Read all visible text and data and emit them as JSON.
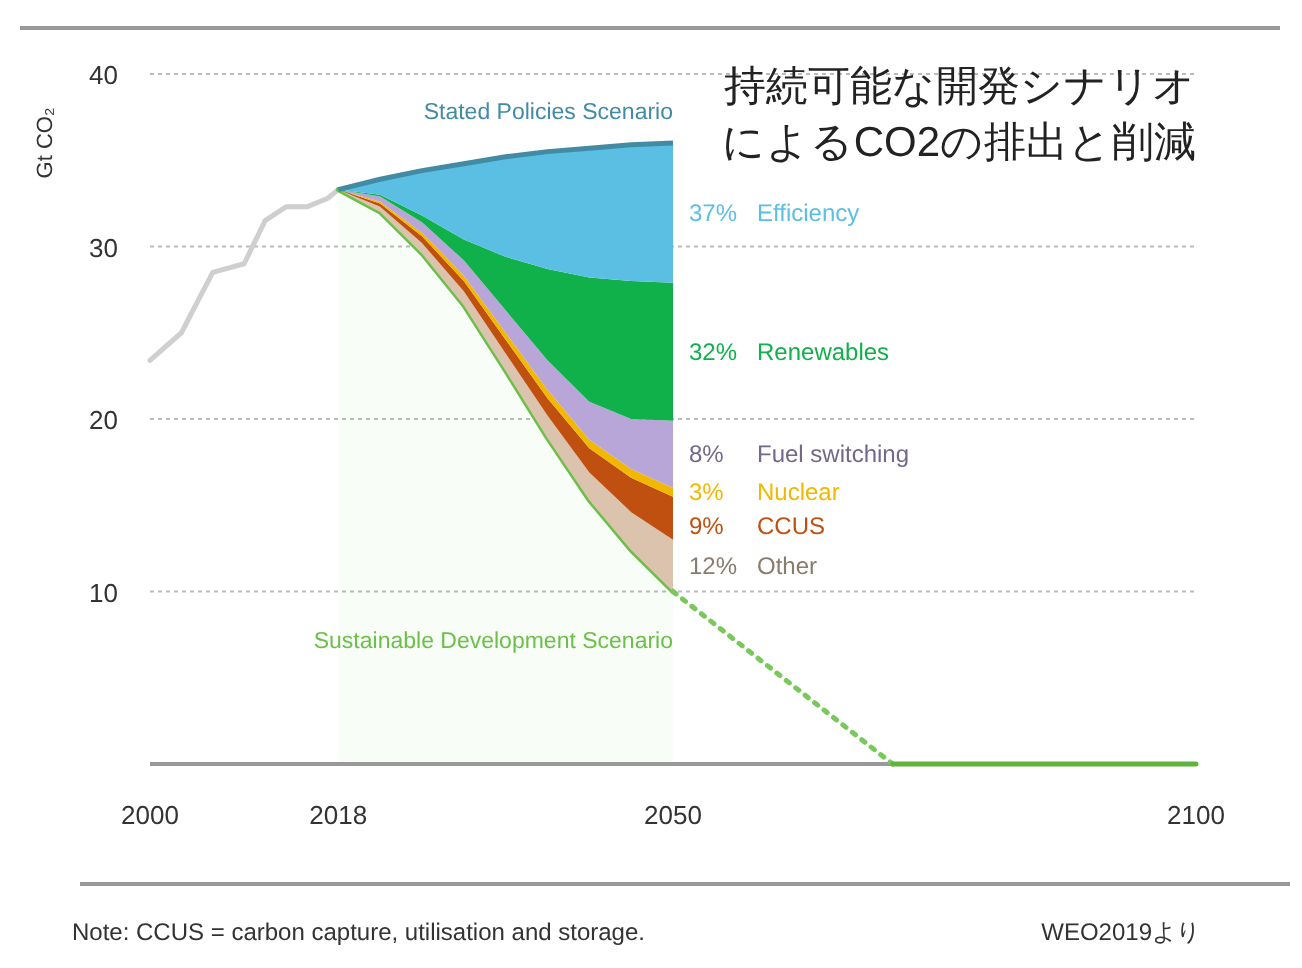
{
  "chart_data": {
    "type": "area",
    "stacked": true,
    "title": "持続可能な開発シナリオによるCO2の排出と削減",
    "ylabel": "Gt CO₂",
    "xlim": [
      2000,
      2100
    ],
    "xticks": [
      2000,
      2018,
      2050,
      2100
    ],
    "ylim": [
      0,
      40
    ],
    "yticks": [
      10,
      20,
      30,
      40
    ],
    "grid": "y",
    "legend": false,
    "marker": "none",
    "x": [
      2018,
      2022,
      2026,
      2030,
      2034,
      2038,
      2042,
      2046,
      2050
    ],
    "series": [
      {
        "type": "line",
        "color": "#cfcfcf",
        "x": [
          2000,
          2003,
          2006,
          2009,
          2011,
          2013,
          2015,
          2017,
          2018
        ],
        "values": [
          23.4,
          25,
          28.5,
          29,
          31.5,
          32.3,
          32.3,
          32.8,
          33.3
        ]
      },
      {
        "name": "Sustainable Development Scenario",
        "color": "#6cc04a",
        "values": [
          33.3,
          32.0,
          29.6,
          26.6,
          22.8,
          18.9,
          15.3,
          12.4,
          10
        ]
      },
      {
        "name": "12% Other",
        "color": "#dcc3ae",
        "values": [
          0,
          0.3,
          0.6,
          0.8,
          1.0,
          1.3,
          1.6,
          2.2,
          3.0
        ]
      },
      {
        "name": "9% CCUS",
        "color": "#c0500f",
        "values": [
          0,
          0.2,
          0.4,
          0.6,
          0.8,
          1.0,
          1.4,
          2.0,
          2.5
        ]
      },
      {
        "name": "3% Nuclear",
        "color": "#f2b800",
        "values": [
          0,
          0.1,
          0.2,
          0.3,
          0.4,
          0.5,
          0.5,
          0.5,
          0.5
        ]
      },
      {
        "name": "8% Fuel switching",
        "color": "#b9a6d9",
        "values": [
          0,
          0.3,
          0.6,
          0.9,
          1.3,
          1.7,
          2.2,
          2.9,
          3.9
        ]
      },
      {
        "name": "32% Renewables",
        "color": "#10b04a",
        "values": [
          0,
          0.1,
          0.4,
          1.2,
          3.1,
          5.3,
          7.2,
          8.0,
          8.0
        ]
      },
      {
        "name": "37% Efficiency",
        "color": "#5bbfe3",
        "values": [
          0,
          0.9,
          2.6,
          4.4,
          5.8,
          6.8,
          7.5,
          7.9,
          8.1
        ]
      },
      {
        "type": "line",
        "color": "#78c95a",
        "line_style": "dotted",
        "x": [
          2050,
          2071
        ],
        "values": [
          10,
          0
        ]
      },
      {
        "type": "line",
        "color": "#5fb43d",
        "x": [
          2071,
          2100
        ],
        "values": [
          0,
          0
        ]
      }
    ],
    "annotations": [
      "Stated Policies Scenario",
      "Note: CCUS = carbon capture, utilisation and storage.",
      "WEO2019より"
    ]
  }
}
